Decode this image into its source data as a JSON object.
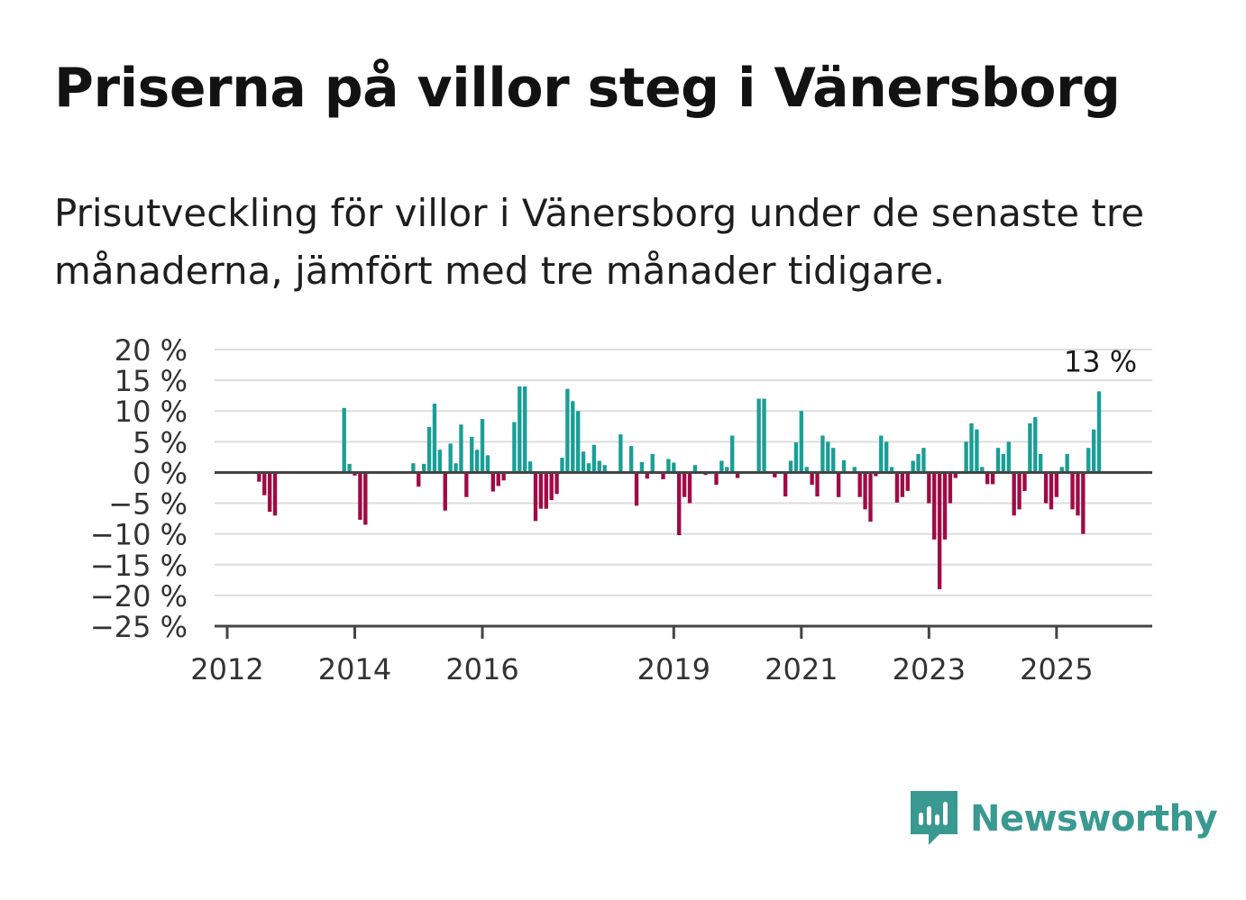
{
  "title": "Priserna på villor steg i Vänersborg",
  "subtitle": "Prisutveckling för villor i Vänersborg under de senaste tre månaderna, jämfört med tre månader tidigare.",
  "brand": {
    "name": "Newsworthy",
    "color": "#3a9990",
    "icon": "newsworthy-logo-icon"
  },
  "colors": {
    "positive": "#1a9e96",
    "negative": "#a00a45",
    "grid": "#dddddd",
    "axis": "#444444"
  },
  "chart_data": {
    "type": "bar",
    "title": "Priserna på villor steg i Vänersborg",
    "xlabel": "",
    "ylabel": "",
    "ylim": [
      -25,
      20
    ],
    "y_ticks": [
      20,
      15,
      10,
      5,
      0,
      -5,
      -10,
      -15,
      -20,
      -25
    ],
    "y_tick_labels": [
      "20 %",
      "15 %",
      "10 %",
      "5 %",
      "0 %",
      "−5 %",
      "−10 %",
      "−15 %",
      "−20 %",
      "−25 %"
    ],
    "x_range": [
      "2012-01",
      "2026-07"
    ],
    "x_ticks": [
      "2012-01",
      "2014-01",
      "2016-01",
      "2019-01",
      "2021-01",
      "2023-01",
      "2025-01"
    ],
    "x_tick_labels": [
      "2012",
      "2014",
      "2016",
      "2019",
      "2021",
      "2023",
      "2025"
    ],
    "grid": true,
    "legend": "none",
    "last_value_label": "13 %",
    "data": [
      [
        "2012-07",
        -1.5
      ],
      [
        "2012-08",
        -3.7
      ],
      [
        "2012-09",
        -6.4
      ],
      [
        "2012-10",
        -7.0
      ],
      [
        "2013-11",
        10.5
      ],
      [
        "2013-12",
        1.4
      ],
      [
        "2014-01",
        -0.5
      ],
      [
        "2014-02",
        -7.7
      ],
      [
        "2014-03",
        -8.5
      ],
      [
        "2014-12",
        1.5
      ],
      [
        "2015-01",
        -2.3
      ],
      [
        "2015-02",
        1.4
      ],
      [
        "2015-03",
        7.4
      ],
      [
        "2015-04",
        11.2
      ],
      [
        "2015-05",
        3.7
      ],
      [
        "2015-06",
        -6.2
      ],
      [
        "2015-07",
        4.7
      ],
      [
        "2015-08",
        1.5
      ],
      [
        "2015-09",
        7.8
      ],
      [
        "2015-10",
        -4.0
      ],
      [
        "2015-11",
        5.8
      ],
      [
        "2015-12",
        3.7
      ],
      [
        "2016-01",
        8.7
      ],
      [
        "2016-02",
        2.8
      ],
      [
        "2016-03",
        -3.1
      ],
      [
        "2016-04",
        -2.2
      ],
      [
        "2016-05",
        -1.3
      ],
      [
        "2016-07",
        8.2
      ],
      [
        "2016-08",
        14.0
      ],
      [
        "2016-09",
        14.0
      ],
      [
        "2016-10",
        1.8
      ],
      [
        "2016-11",
        -7.9
      ],
      [
        "2016-12",
        -5.9
      ],
      [
        "2017-01",
        -5.9
      ],
      [
        "2017-02",
        -4.5
      ],
      [
        "2017-03",
        -3.5
      ],
      [
        "2017-04",
        2.4
      ],
      [
        "2017-05",
        13.6
      ],
      [
        "2017-06",
        11.6
      ],
      [
        "2017-07",
        10.0
      ],
      [
        "2017-08",
        3.4
      ],
      [
        "2017-09",
        1.5
      ],
      [
        "2017-10",
        4.5
      ],
      [
        "2017-11",
        1.9
      ],
      [
        "2017-12",
        1.2
      ],
      [
        "2018-03",
        6.2
      ],
      [
        "2018-05",
        4.3
      ],
      [
        "2018-06",
        -5.4
      ],
      [
        "2018-07",
        1.7
      ],
      [
        "2018-08",
        -1.0
      ],
      [
        "2018-09",
        3.0
      ],
      [
        "2018-11",
        -1.1
      ],
      [
        "2018-12",
        2.2
      ],
      [
        "2019-01",
        1.6
      ],
      [
        "2019-02",
        -10.2
      ],
      [
        "2019-03",
        -4.0
      ],
      [
        "2019-04",
        -5.0
      ],
      [
        "2019-05",
        1.2
      ],
      [
        "2019-07",
        -0.4
      ],
      [
        "2019-09",
        -2.0
      ],
      [
        "2019-10",
        1.9
      ],
      [
        "2019-11",
        0.9
      ],
      [
        "2019-12",
        6.0
      ],
      [
        "2020-01",
        -0.9
      ],
      [
        "2020-05",
        12.0
      ],
      [
        "2020-06",
        12.0
      ],
      [
        "2020-08",
        -0.8
      ],
      [
        "2020-10",
        -3.9
      ],
      [
        "2020-11",
        1.9
      ],
      [
        "2020-12",
        4.9
      ],
      [
        "2021-01",
        10.0
      ],
      [
        "2021-02",
        0.9
      ],
      [
        "2021-03",
        -2.0
      ],
      [
        "2021-04",
        -3.9
      ],
      [
        "2021-05",
        6.0
      ],
      [
        "2021-06",
        5.0
      ],
      [
        "2021-07",
        4.0
      ],
      [
        "2021-08",
        -4.0
      ],
      [
        "2021-09",
        2.0
      ],
      [
        "2021-11",
        0.9
      ],
      [
        "2021-12",
        -4.0
      ],
      [
        "2022-01",
        -6.0
      ],
      [
        "2022-02",
        -8.0
      ],
      [
        "2022-03",
        -0.6
      ],
      [
        "2022-04",
        6.0
      ],
      [
        "2022-05",
        5.0
      ],
      [
        "2022-06",
        0.9
      ],
      [
        "2022-07",
        -4.9
      ],
      [
        "2022-08",
        -4.0
      ],
      [
        "2022-09",
        -3.0
      ],
      [
        "2022-10",
        1.9
      ],
      [
        "2022-11",
        3.0
      ],
      [
        "2022-12",
        4.0
      ],
      [
        "2023-01",
        -5.0
      ],
      [
        "2023-02",
        -10.9
      ],
      [
        "2023-03",
        -19.0
      ],
      [
        "2023-04",
        -10.9
      ],
      [
        "2023-05",
        -5.0
      ],
      [
        "2023-06",
        -0.9
      ],
      [
        "2023-08",
        5.0
      ],
      [
        "2023-09",
        8.0
      ],
      [
        "2023-10",
        7.0
      ],
      [
        "2023-11",
        0.9
      ],
      [
        "2023-12",
        -1.9
      ],
      [
        "2024-01",
        -1.9
      ],
      [
        "2024-02",
        4.0
      ],
      [
        "2024-03",
        3.0
      ],
      [
        "2024-04",
        5.0
      ],
      [
        "2024-05",
        -7.0
      ],
      [
        "2024-06",
        -6.0
      ],
      [
        "2024-07",
        -3.0
      ],
      [
        "2024-08",
        8.0
      ],
      [
        "2024-09",
        9.0
      ],
      [
        "2024-10",
        3.0
      ],
      [
        "2024-11",
        -5.0
      ],
      [
        "2024-12",
        -6.0
      ],
      [
        "2025-01",
        -4.0
      ],
      [
        "2025-02",
        0.9
      ],
      [
        "2025-03",
        3.0
      ],
      [
        "2025-04",
        -6.0
      ],
      [
        "2025-05",
        -7.0
      ],
      [
        "2025-06",
        -10.0
      ],
      [
        "2025-07",
        4.0
      ],
      [
        "2025-08",
        7.0
      ],
      [
        "2025-09",
        13.2
      ]
    ]
  }
}
